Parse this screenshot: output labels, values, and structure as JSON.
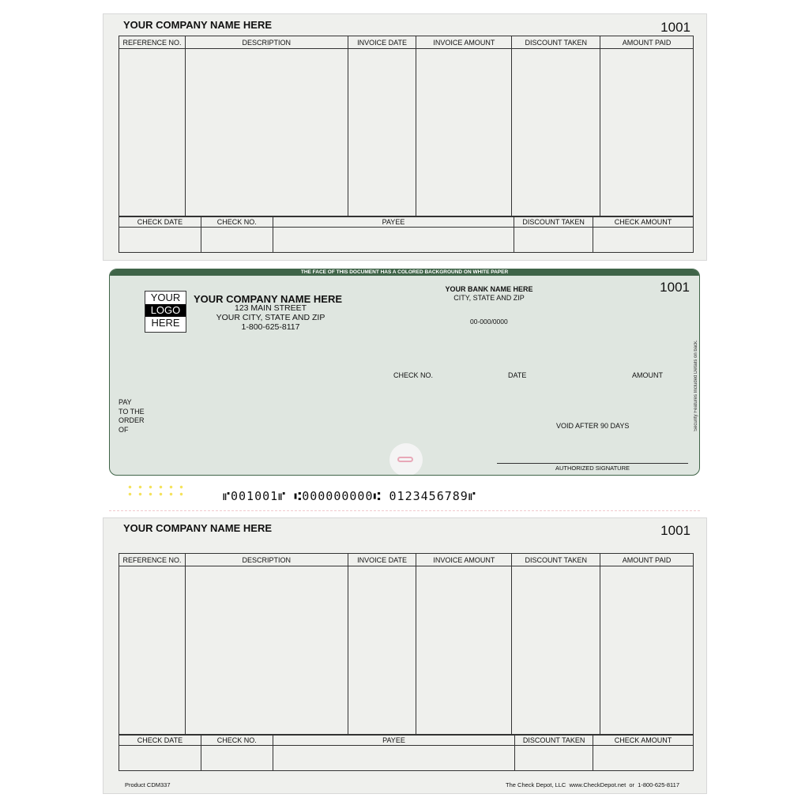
{
  "company": "YOUR COMPANY NAME HERE",
  "check_number": "1001",
  "stub": {
    "columns": [
      "REFERENCE NO.",
      "DESCRIPTION",
      "INVOICE DATE",
      "INVOICE AMOUNT",
      "DISCOUNT TAKEN",
      "AMOUNT PAID"
    ],
    "footer_columns": [
      "CHECK DATE",
      "CHECK NO.",
      "PAYEE",
      "DISCOUNT TAKEN",
      "CHECK AMOUNT"
    ]
  },
  "check": {
    "banner": "THE FACE OF THIS DOCUMENT HAS A COLORED BACKGROUND ON WHITE PAPER",
    "logo": [
      "YOUR",
      "LOGO",
      "HERE"
    ],
    "company": "YOUR COMPANY NAME HERE",
    "address": "123 MAIN STREET",
    "city": "YOUR CITY, STATE AND ZIP",
    "phone": "1-800-625-8117",
    "bank": "YOUR BANK NAME HERE",
    "bank_city": "CITY, STATE AND ZIP",
    "routing_fraction": "00-000/0000",
    "check_no_label": "CHECK NO.",
    "date_label": "DATE",
    "amount_label": "AMOUNT",
    "pay_to": [
      "PAY",
      "TO THE",
      "ORDER",
      "OF"
    ],
    "void": "VOID AFTER 90 DAYS",
    "signature": "AUTHORIZED SIGNATURE",
    "side_text": "Security Features Included   Details on back.",
    "micr": "⑈001001⑈ ⑆000000000⑆ 0123456789⑈",
    "colors": {
      "green": "#3f6448",
      "background": "#dfe6e0"
    }
  },
  "footer": {
    "product": "Product CDM337",
    "vendor": "The Check Depot, LLC  www.CheckDepot.net  or  1-800-625-8117"
  }
}
